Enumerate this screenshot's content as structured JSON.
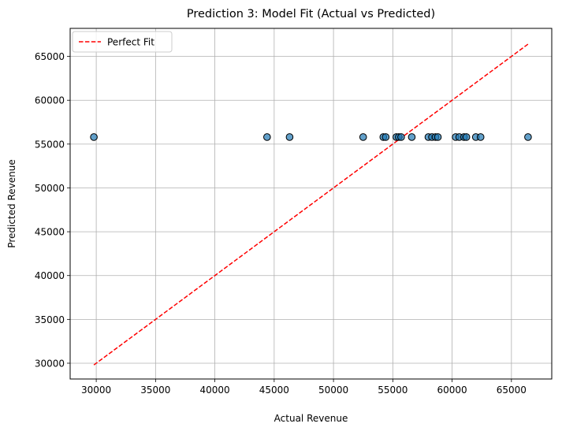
{
  "chart_data": {
    "type": "scatter",
    "title": "Prediction 3: Model Fit (Actual vs Predicted)",
    "xlabel": "Actual Revenue",
    "ylabel": "Predicted Revenue",
    "xlim": [
      27800,
      68400
    ],
    "ylim": [
      28200,
      68200
    ],
    "xticks": [
      30000,
      35000,
      40000,
      45000,
      50000,
      55000,
      60000,
      65000
    ],
    "yticks": [
      30000,
      35000,
      40000,
      45000,
      50000,
      55000,
      60000,
      65000
    ],
    "grid": true,
    "legend_position": "top-left",
    "points": {
      "color": "#1f77b4",
      "x": [
        29800,
        44400,
        46300,
        52500,
        54200,
        54400,
        55300,
        55500,
        55700,
        56600,
        58000,
        58300,
        58600,
        58800,
        60300,
        60600,
        61000,
        61200,
        62000,
        62400,
        66400
      ],
      "y": [
        55800,
        55800,
        55800,
        55800,
        55800,
        55800,
        55800,
        55800,
        55800,
        55800,
        55800,
        55800,
        55800,
        55800,
        55800,
        55800,
        55800,
        55800,
        55800,
        55800,
        55800
      ]
    },
    "reference_line": {
      "name": "Perfect Fit",
      "color": "#ff0000",
      "x": [
        29800,
        66400
      ],
      "y": [
        29800,
        66400
      ]
    }
  }
}
